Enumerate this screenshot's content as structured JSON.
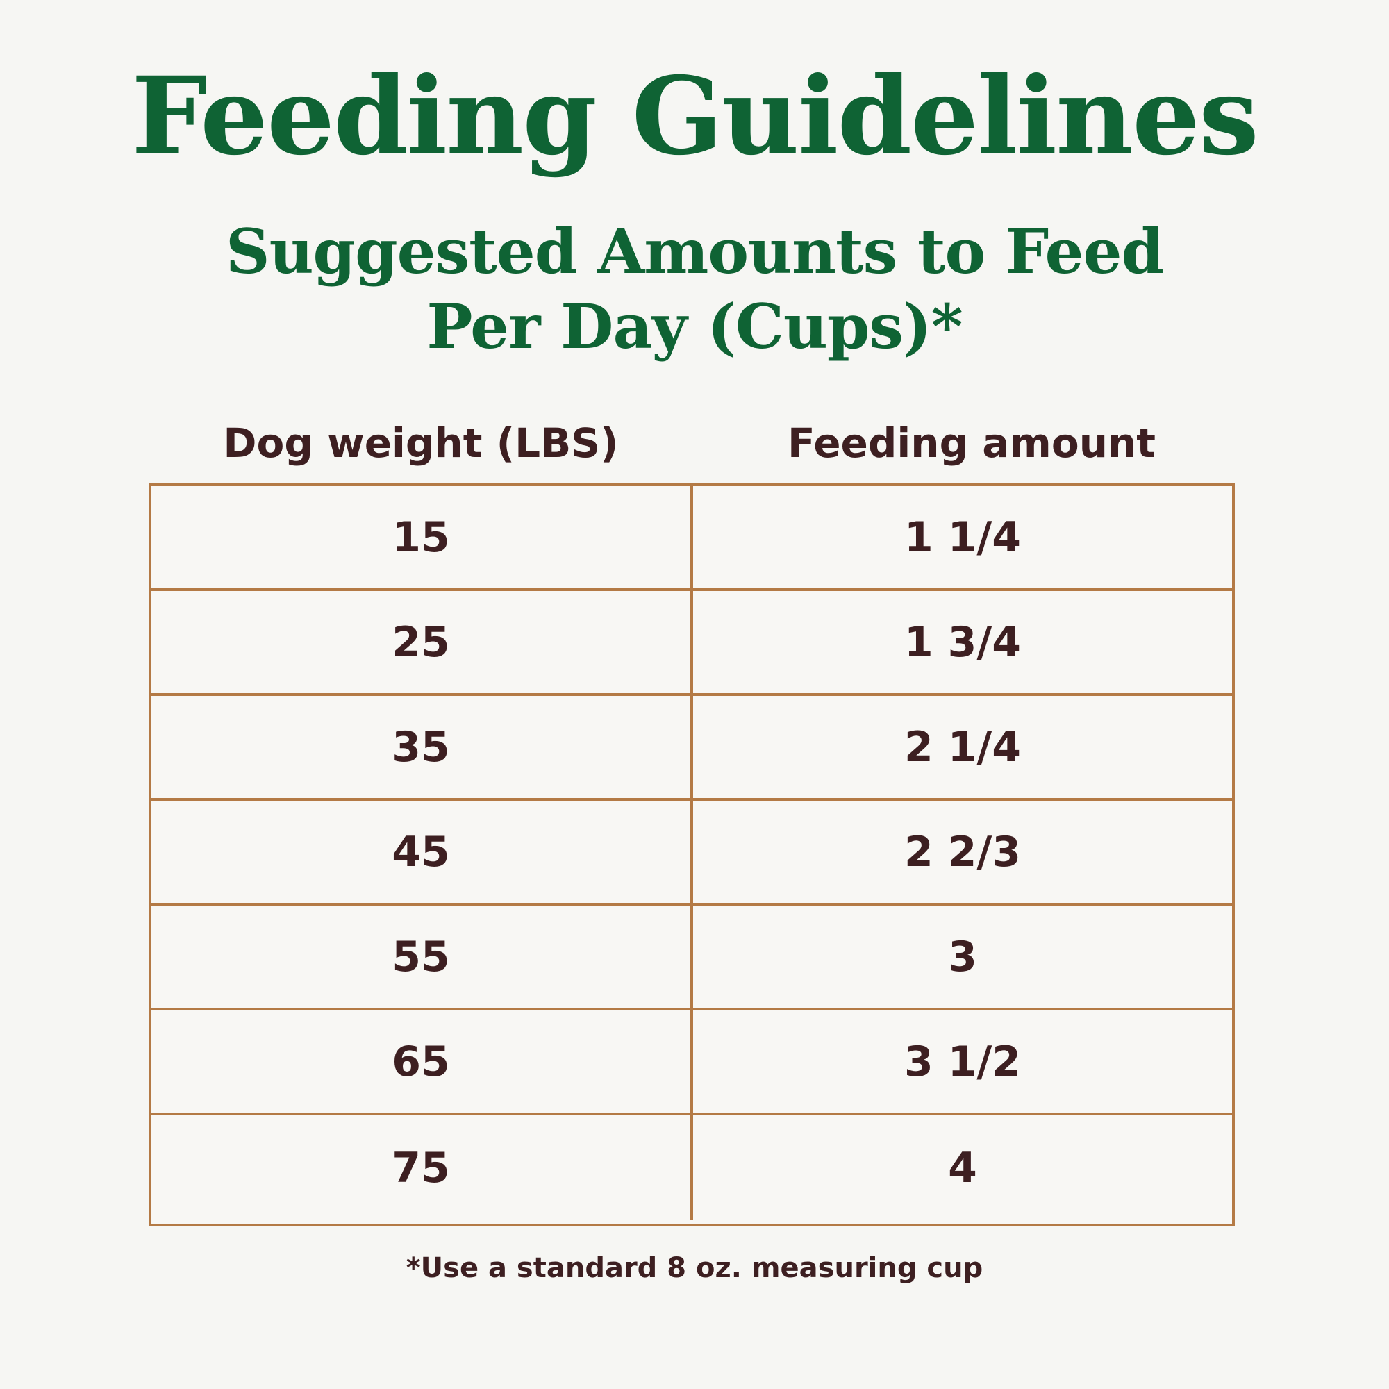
{
  "title": "Feeding Guidelines",
  "subtitle": {
    "line1": "Suggested Amounts to Feed",
    "line2": "Per Day (Cups)*"
  },
  "table": {
    "headers": {
      "weight": "Dog weight (LBS)",
      "amount": "Feeding amount"
    },
    "rows": [
      {
        "weight": "15",
        "amount": "1 1/4"
      },
      {
        "weight": "25",
        "amount": "1 3/4"
      },
      {
        "weight": "35",
        "amount": "2 1/4"
      },
      {
        "weight": "45",
        "amount": "2 2/3"
      },
      {
        "weight": "55",
        "amount": "3"
      },
      {
        "weight": "65",
        "amount": "3 1/2"
      },
      {
        "weight": "75",
        "amount": "4"
      }
    ]
  },
  "footnote": "*Use a standard 8 oz. measuring cup",
  "colors": {
    "heading": "#0f6334",
    "text": "#3d1f21",
    "border": "#b47a45",
    "background": "#f6f6f3"
  }
}
